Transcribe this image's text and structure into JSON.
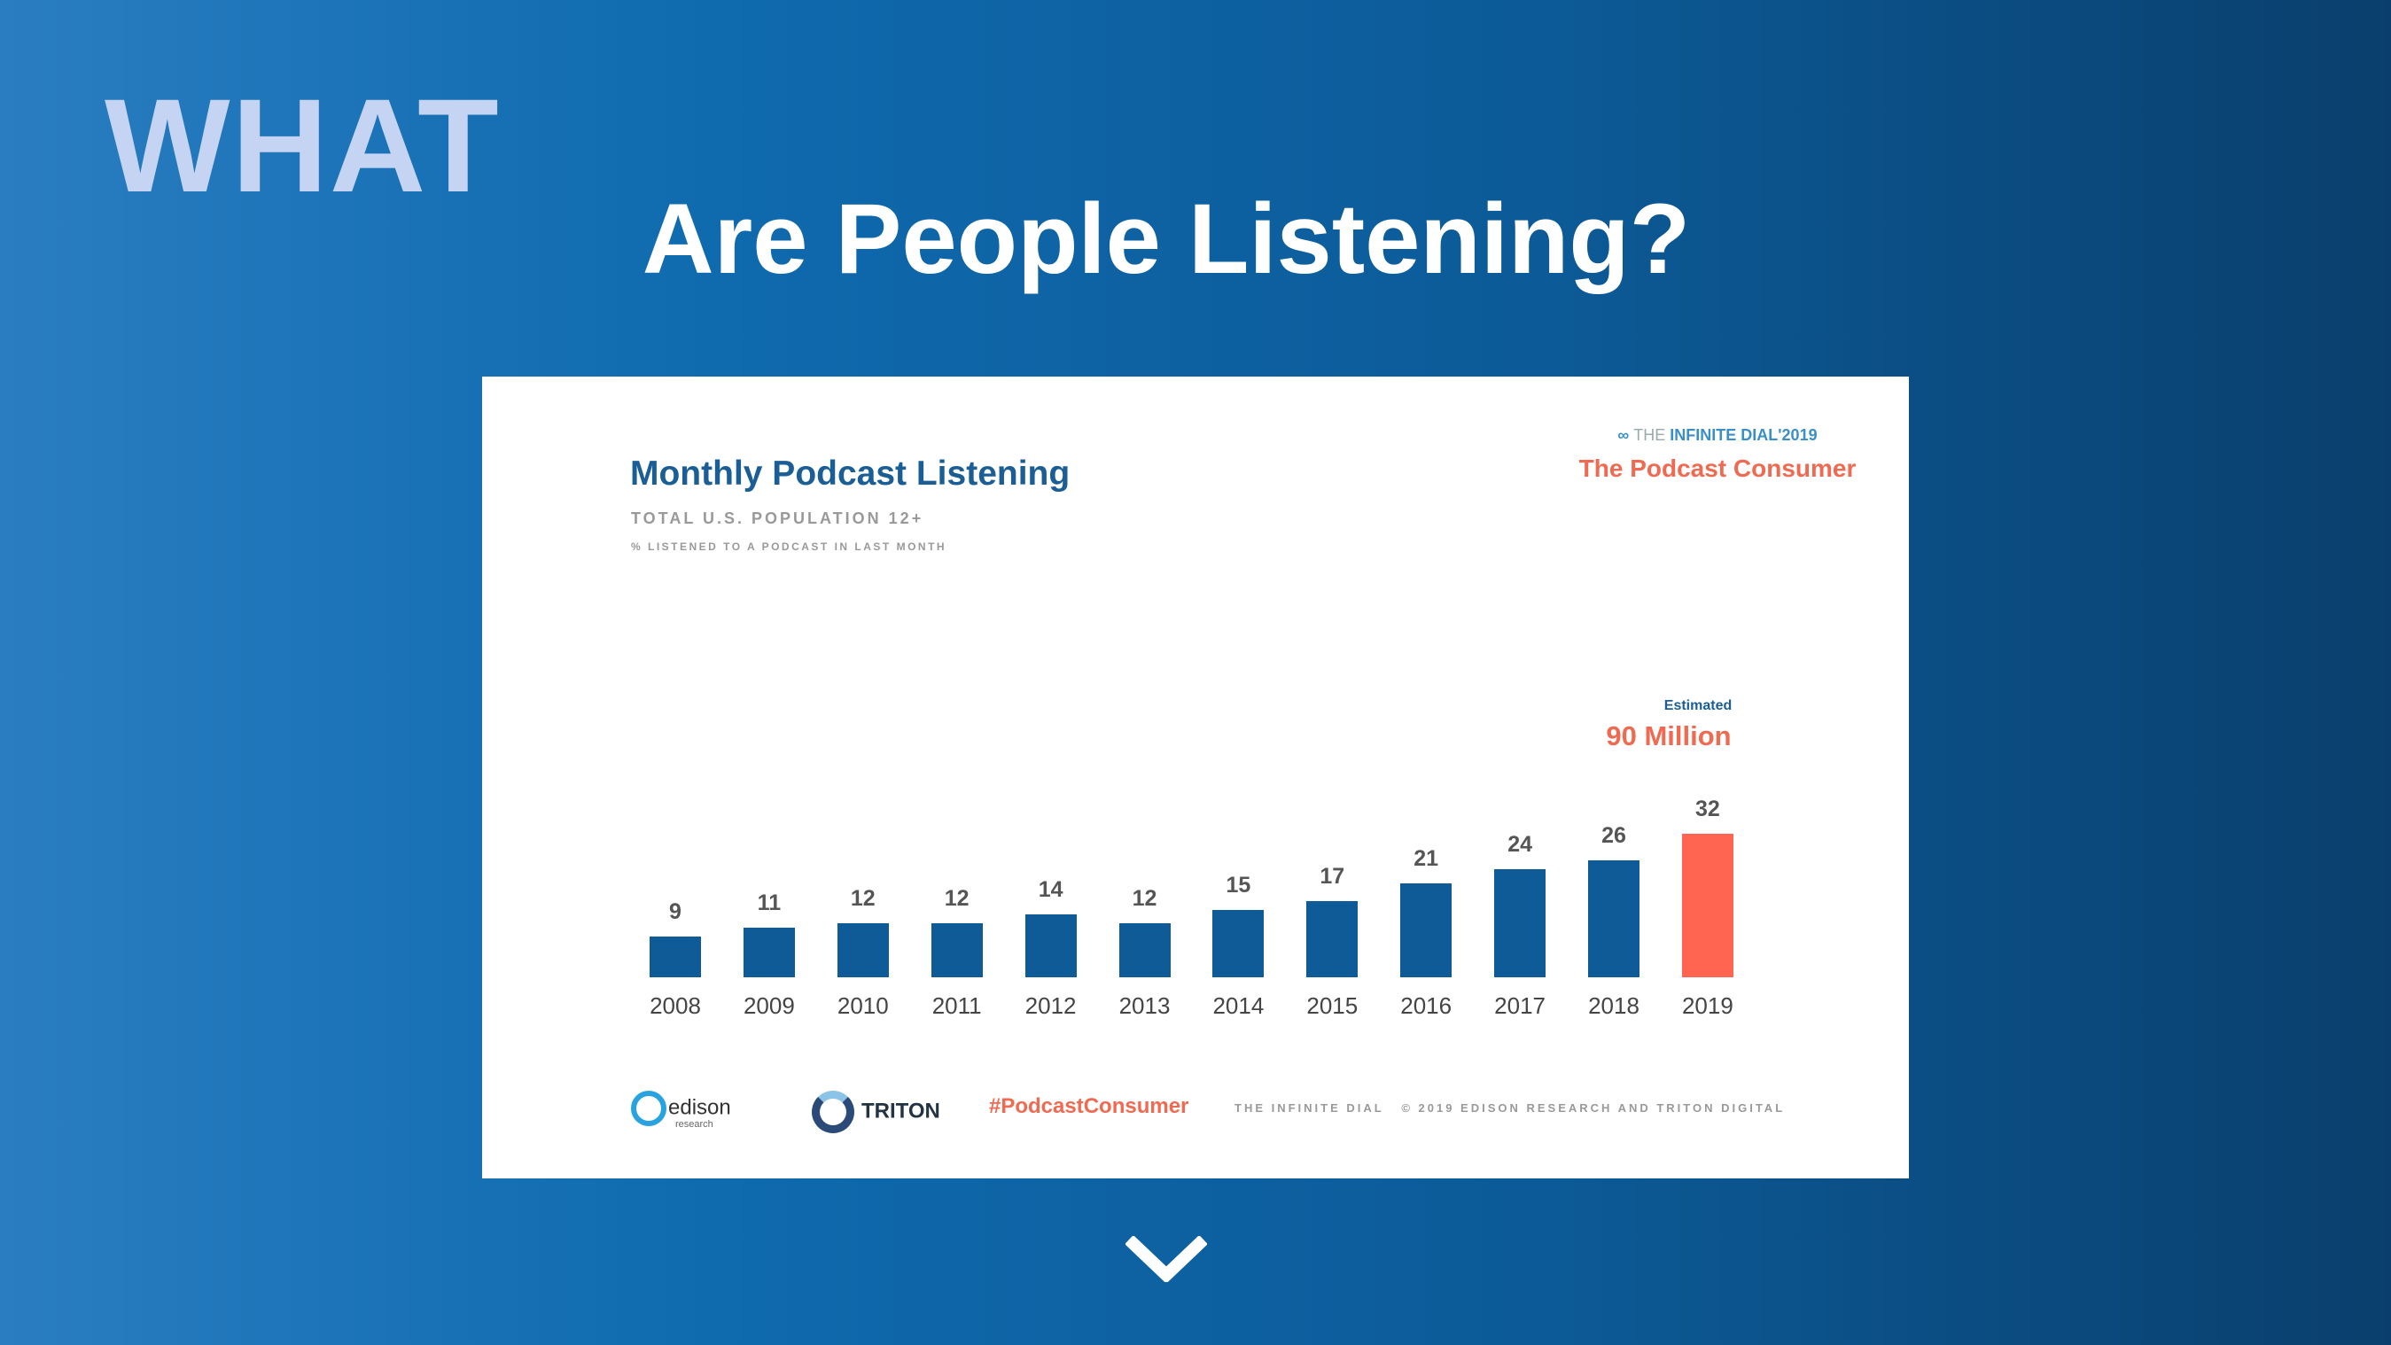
{
  "slide": {
    "section": "WHAT",
    "title": "Are People Listening?"
  },
  "card": {
    "brand_prefix": "THE ",
    "brand_bold": "INFINITE",
    "brand_suffix": " DIAL'2019",
    "report": "The Podcast Consumer",
    "footer": {
      "edison": "edison",
      "edison_sub": "research",
      "triton": "TRITON",
      "hashtag": "#PodcastConsumer",
      "copyright": "THE INFINITE DIAL   © 2019 EDISON RESEARCH AND TRITON DIGITAL"
    }
  },
  "chart_data": {
    "type": "bar",
    "title": "Monthly Podcast Listening",
    "subtitle": "TOTAL U.S. POPULATION 12+",
    "ylabel": "% LISTENED TO A PODCAST IN LAST MONTH",
    "categories": [
      "2008",
      "2009",
      "2010",
      "2011",
      "2012",
      "2013",
      "2014",
      "2015",
      "2016",
      "2017",
      "2018",
      "2019"
    ],
    "values": [
      9,
      11,
      12,
      12,
      14,
      12,
      15,
      17,
      21,
      24,
      26,
      32
    ],
    "highlight_index": 11,
    "colors": {
      "bar": "#0f5b98",
      "highlight": "#ff6550"
    },
    "annotation": {
      "label": "Estimated",
      "value": "90 Million"
    },
    "ylim": [
      0,
      32
    ]
  }
}
